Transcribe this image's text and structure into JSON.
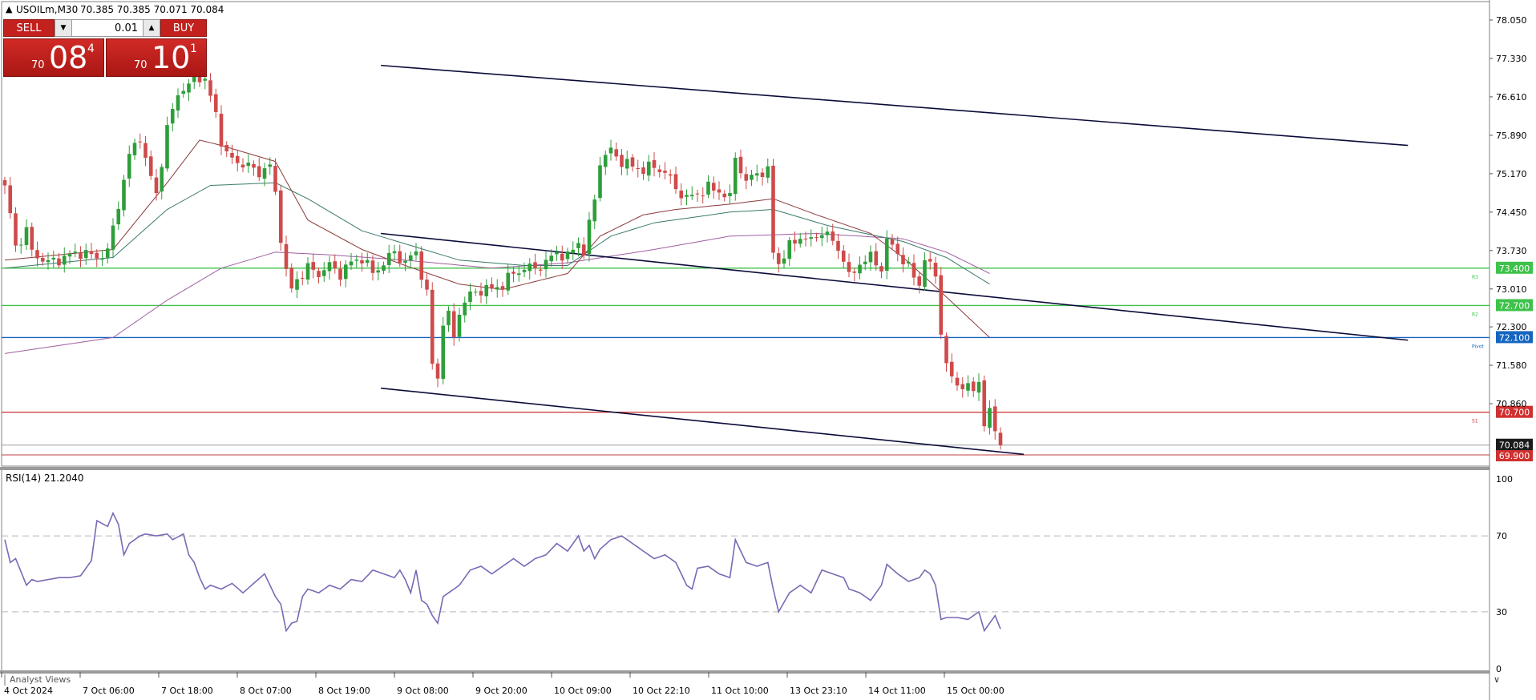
{
  "header": {
    "symbol_info": "USOILm,M30",
    "ohlc": "70.385 70.385 70.071 70.084"
  },
  "trade_panel": {
    "sell_label": "SELL",
    "buy_label": "BUY",
    "lot": "0.01",
    "sell_small": "70",
    "sell_big": "08",
    "sell_sup": "4",
    "buy_small": "70",
    "buy_big": "10",
    "buy_sup": "1"
  },
  "price_axis": {
    "ticks": [
      "78.050",
      "77.330",
      "76.610",
      "75.890",
      "75.170",
      "74.450",
      "73.730",
      "73.010",
      "72.300",
      "71.580",
      "70.860"
    ],
    "range": [
      69.75,
      78.35
    ]
  },
  "levels": [
    {
      "price": 73.4,
      "label": "73.400",
      "line_color": "#3fc24b",
      "badge_color": "#3fc24b",
      "side_label": "R3"
    },
    {
      "price": 72.7,
      "label": "72.700",
      "line_color": "#3fc24b",
      "badge_color": "#3fc24b",
      "side_label": "R2"
    },
    {
      "price": 72.1,
      "label": "72.100",
      "line_color": "#1565c0",
      "badge_color": "#1565c0",
      "side_label": "Pivot"
    },
    {
      "price": 70.7,
      "label": "70.700",
      "line_color": "#d04040",
      "badge_color": "#d03030",
      "side_label": "S1"
    }
  ],
  "current_price_badge": {
    "price": 70.084,
    "label": "70.084",
    "color": "#1b1b1b"
  },
  "bottom_level_badge": {
    "price": 69.9,
    "label": "69.900",
    "color": "#d03030"
  },
  "rsi": {
    "title": "RSI(14) 21.2040",
    "ticks": [
      "100",
      "70",
      "30",
      "0"
    ],
    "levels": [
      70,
      30
    ],
    "line_color": "#7b68b5"
  },
  "time_axis": {
    "labels": [
      "4 Oct 2024",
      "7 Oct 06:00",
      "7 Oct 18:00",
      "8 Oct 07:00",
      "8 Oct 19:00",
      "9 Oct 08:00",
      "9 Oct 20:00",
      "10 Oct 09:00",
      "10 Oct 22:10",
      "11 Oct 10:00",
      "13 Oct 23:10",
      "14 Oct 11:00",
      "15 Oct 00:00"
    ]
  },
  "footer_tab": "Analyst Views",
  "colors": {
    "bull": "#2e9e3a",
    "bear": "#cf4a4a",
    "ma_short": "#8b3a3a",
    "ma_mid": "#3b7a6a",
    "ma_long": "#a05fa0"
  },
  "chart_data": {
    "type": "candlestick",
    "symbol": "USOILm",
    "timeframe": "M30",
    "close_anchors": [
      [
        0,
        74.9
      ],
      [
        1,
        74.4
      ],
      [
        2,
        73.8
      ],
      [
        4,
        74.1
      ],
      [
        5,
        73.7
      ],
      [
        8,
        73.5
      ],
      [
        11,
        73.6
      ],
      [
        14,
        73.7
      ],
      [
        17,
        73.6
      ],
      [
        19,
        73.7
      ],
      [
        21,
        74.6
      ],
      [
        23,
        75.5
      ],
      [
        25,
        75.9
      ],
      [
        26,
        75.4
      ],
      [
        28,
        74.8
      ],
      [
        30,
        76.0
      ],
      [
        32,
        76.7
      ],
      [
        34,
        76.8
      ],
      [
        35,
        77.1
      ],
      [
        37,
        76.9
      ],
      [
        39,
        76.3
      ],
      [
        40,
        75.8
      ],
      [
        41,
        75.5
      ],
      [
        43,
        75.4
      ],
      [
        45,
        75.3
      ],
      [
        47,
        75.2
      ],
      [
        49,
        75.3
      ],
      [
        50,
        74.8
      ],
      [
        51,
        74.0
      ],
      [
        52,
        73.3
      ],
      [
        53,
        73.0
      ],
      [
        54,
        73.2
      ],
      [
        56,
        73.4
      ],
      [
        58,
        73.3
      ],
      [
        60,
        73.45
      ],
      [
        62,
        73.3
      ],
      [
        64,
        73.5
      ],
      [
        66,
        73.6
      ],
      [
        68,
        73.3
      ],
      [
        70,
        73.5
      ],
      [
        72,
        73.7
      ],
      [
        74,
        73.5
      ],
      [
        76,
        73.7
      ],
      [
        78,
        72.9
      ],
      [
        79,
        71.6
      ],
      [
        80,
        71.35
      ],
      [
        81,
        72.4
      ],
      [
        82,
        72.5
      ],
      [
        83,
        72.1
      ],
      [
        84,
        72.6
      ],
      [
        86,
        72.9
      ],
      [
        88,
        73.0
      ],
      [
        90,
        73.0
      ],
      [
        92,
        73.1
      ],
      [
        94,
        73.3
      ],
      [
        96,
        73.4
      ],
      [
        98,
        73.4
      ],
      [
        100,
        73.5
      ],
      [
        102,
        73.7
      ],
      [
        104,
        73.6
      ],
      [
        106,
        73.9
      ],
      [
        107,
        73.7
      ],
      [
        108,
        74.2
      ],
      [
        109,
        74.7
      ],
      [
        110,
        75.4
      ],
      [
        112,
        75.6
      ],
      [
        114,
        75.4
      ],
      [
        116,
        75.3
      ],
      [
        118,
        75.25
      ],
      [
        120,
        75.3
      ],
      [
        122,
        75.2
      ],
      [
        124,
        74.9
      ],
      [
        126,
        74.7
      ],
      [
        128,
        74.8
      ],
      [
        130,
        74.9
      ],
      [
        132,
        74.85
      ],
      [
        134,
        74.7
      ],
      [
        135,
        75.5
      ],
      [
        137,
        75.0
      ],
      [
        139,
        75.2
      ],
      [
        141,
        75.2
      ],
      [
        142,
        73.7
      ],
      [
        143,
        73.5
      ],
      [
        145,
        73.8
      ],
      [
        147,
        74.0
      ],
      [
        149,
        73.9
      ],
      [
        151,
        74.1
      ],
      [
        153,
        73.9
      ],
      [
        155,
        73.6
      ],
      [
        156,
        73.2
      ],
      [
        158,
        73.5
      ],
      [
        160,
        73.6
      ],
      [
        162,
        73.4
      ],
      [
        163,
        73.9
      ],
      [
        165,
        73.7
      ],
      [
        167,
        73.4
      ],
      [
        169,
        73.1
      ],
      [
        170,
        73.6
      ],
      [
        171,
        73.4
      ],
      [
        172,
        73.3
      ],
      [
        173,
        72.2
      ],
      [
        174,
        71.6
      ],
      [
        175,
        71.3
      ],
      [
        177,
        71.2
      ],
      [
        179,
        71.1
      ],
      [
        180,
        71.3
      ],
      [
        181,
        70.5
      ],
      [
        182,
        70.65
      ],
      [
        183,
        70.4
      ],
      [
        184,
        70.08
      ]
    ],
    "ma_short": [
      [
        0,
        73.55
      ],
      [
        20,
        73.75
      ],
      [
        30,
        75.0
      ],
      [
        36,
        75.8
      ],
      [
        40,
        75.7
      ],
      [
        50,
        75.4
      ],
      [
        56,
        74.3
      ],
      [
        66,
        73.75
      ],
      [
        74,
        73.45
      ],
      [
        84,
        73.1
      ],
      [
        92,
        73.0
      ],
      [
        104,
        73.3
      ],
      [
        110,
        74.0
      ],
      [
        118,
        74.4
      ],
      [
        124,
        74.5
      ],
      [
        134,
        74.6
      ],
      [
        142,
        74.7
      ],
      [
        150,
        74.4
      ],
      [
        160,
        74.05
      ],
      [
        166,
        73.6
      ],
      [
        172,
        73.05
      ],
      [
        182,
        72.1
      ]
    ],
    "ma_mid": [
      [
        0,
        73.4
      ],
      [
        20,
        73.6
      ],
      [
        30,
        74.5
      ],
      [
        38,
        74.95
      ],
      [
        50,
        75.0
      ],
      [
        56,
        74.7
      ],
      [
        66,
        74.1
      ],
      [
        84,
        73.55
      ],
      [
        96,
        73.45
      ],
      [
        104,
        73.45
      ],
      [
        112,
        74.0
      ],
      [
        120,
        74.25
      ],
      [
        134,
        74.45
      ],
      [
        142,
        74.5
      ],
      [
        152,
        74.2
      ],
      [
        166,
        73.9
      ],
      [
        174,
        73.6
      ],
      [
        182,
        73.1
      ]
    ],
    "ma_long": [
      [
        0,
        71.8
      ],
      [
        20,
        72.1
      ],
      [
        30,
        72.8
      ],
      [
        40,
        73.4
      ],
      [
        50,
        73.7
      ],
      [
        60,
        73.65
      ],
      [
        74,
        73.55
      ],
      [
        90,
        73.4
      ],
      [
        104,
        73.5
      ],
      [
        120,
        73.75
      ],
      [
        134,
        74.0
      ],
      [
        150,
        74.05
      ],
      [
        166,
        73.95
      ],
      [
        174,
        73.7
      ],
      [
        182,
        73.3
      ]
    ],
    "channel_upper": [
      [
        69.5,
        77.2
      ],
      [
        259.3,
        75.7
      ]
    ],
    "channel_middle": [
      [
        69.5,
        74.05
      ],
      [
        259.3,
        72.05
      ]
    ],
    "channel_lower": [
      [
        69.5,
        71.15
      ],
      [
        188.3,
        69.91
      ]
    ],
    "rsi_values": [
      [
        0,
        68
      ],
      [
        1,
        56
      ],
      [
        2,
        58
      ],
      [
        4,
        44
      ],
      [
        5,
        47
      ],
      [
        6,
        46
      ],
      [
        8,
        47
      ],
      [
        10,
        48
      ],
      [
        12,
        48
      ],
      [
        14,
        49
      ],
      [
        16,
        57
      ],
      [
        17,
        78
      ],
      [
        19,
        75
      ],
      [
        20,
        82
      ],
      [
        21,
        76
      ],
      [
        22,
        60
      ],
      [
        23,
        66
      ],
      [
        25,
        70
      ],
      [
        26,
        71
      ],
      [
        28,
        70
      ],
      [
        30,
        71
      ],
      [
        31,
        68
      ],
      [
        33,
        71
      ],
      [
        34,
        60
      ],
      [
        35,
        56
      ],
      [
        36,
        48
      ],
      [
        37,
        42
      ],
      [
        38,
        44
      ],
      [
        40,
        42
      ],
      [
        42,
        45
      ],
      [
        44,
        40
      ],
      [
        46,
        45
      ],
      [
        48,
        50
      ],
      [
        49,
        44
      ],
      [
        50,
        38
      ],
      [
        51,
        34
      ],
      [
        52,
        20
      ],
      [
        53,
        24
      ],
      [
        54,
        25
      ],
      [
        55,
        38
      ],
      [
        56,
        42
      ],
      [
        58,
        40
      ],
      [
        60,
        44
      ],
      [
        62,
        42
      ],
      [
        64,
        47
      ],
      [
        66,
        46
      ],
      [
        68,
        52
      ],
      [
        70,
        50
      ],
      [
        72,
        48
      ],
      [
        73,
        52
      ],
      [
        74,
        47
      ],
      [
        75,
        40
      ],
      [
        76,
        52
      ],
      [
        77,
        36
      ],
      [
        78,
        34
      ],
      [
        79,
        28
      ],
      [
        80,
        24
      ],
      [
        81,
        38
      ],
      [
        82,
        40
      ],
      [
        84,
        44
      ],
      [
        86,
        52
      ],
      [
        88,
        54
      ],
      [
        90,
        50
      ],
      [
        92,
        54
      ],
      [
        94,
        58
      ],
      [
        96,
        54
      ],
      [
        98,
        58
      ],
      [
        100,
        60
      ],
      [
        102,
        66
      ],
      [
        104,
        62
      ],
      [
        106,
        70
      ],
      [
        107,
        62
      ],
      [
        108,
        65
      ],
      [
        109,
        58
      ],
      [
        110,
        63
      ],
      [
        112,
        68
      ],
      [
        114,
        70
      ],
      [
        116,
        66
      ],
      [
        118,
        62
      ],
      [
        120,
        58
      ],
      [
        122,
        60
      ],
      [
        124,
        56
      ],
      [
        126,
        44
      ],
      [
        127,
        42
      ],
      [
        128,
        53
      ],
      [
        130,
        54
      ],
      [
        132,
        50
      ],
      [
        134,
        48
      ],
      [
        135,
        68
      ],
      [
        137,
        56
      ],
      [
        139,
        54
      ],
      [
        141,
        56
      ],
      [
        142,
        42
      ],
      [
        143,
        30
      ],
      [
        145,
        40
      ],
      [
        147,
        44
      ],
      [
        149,
        40
      ],
      [
        151,
        52
      ],
      [
        153,
        50
      ],
      [
        155,
        48
      ],
      [
        156,
        42
      ],
      [
        158,
        40
      ],
      [
        160,
        36
      ],
      [
        162,
        44
      ],
      [
        163,
        55
      ],
      [
        165,
        50
      ],
      [
        167,
        46
      ],
      [
        169,
        48
      ],
      [
        170,
        52
      ],
      [
        171,
        50
      ],
      [
        172,
        44
      ],
      [
        173,
        26
      ],
      [
        174,
        27
      ],
      [
        176,
        27
      ],
      [
        178,
        26
      ],
      [
        180,
        30
      ],
      [
        181,
        20
      ],
      [
        182,
        24
      ],
      [
        183,
        28
      ],
      [
        184,
        21
      ]
    ],
    "rsi_current": 21.204,
    "rsi_range": [
      0,
      100
    ],
    "price_range": [
      69.75,
      78.35
    ],
    "grid": false
  }
}
